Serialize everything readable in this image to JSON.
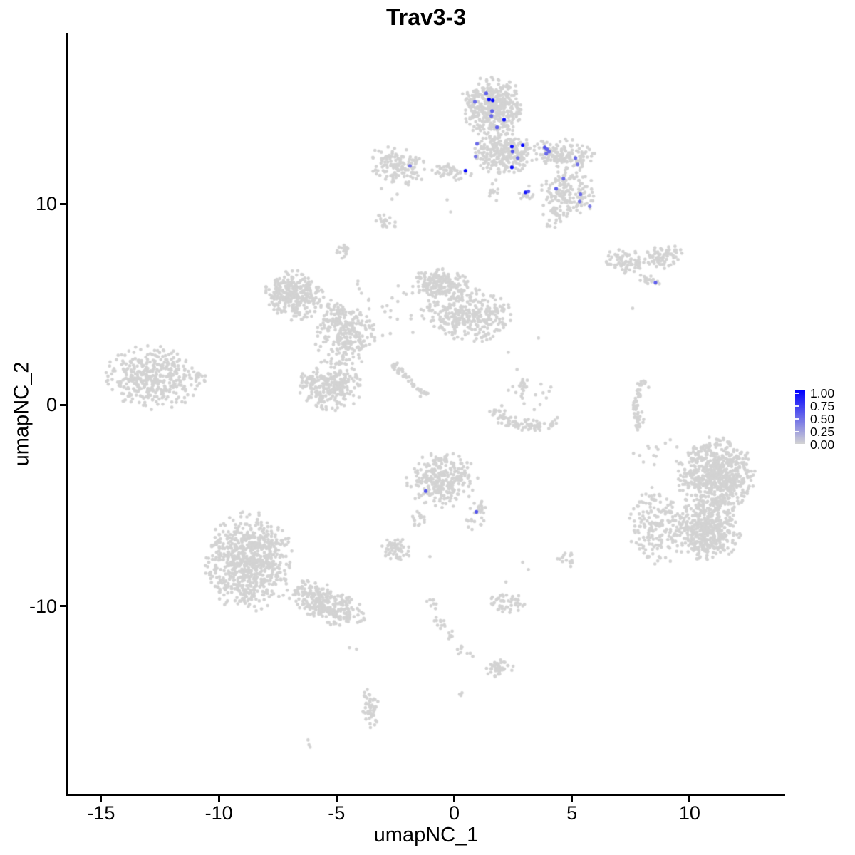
{
  "title": "Trav3-3",
  "axes": {
    "xlabel": "umapNC_1",
    "ylabel": "umapNC_2",
    "x_ticks": [
      {
        "v": -15,
        "label": "-15"
      },
      {
        "v": -10,
        "label": "-10"
      },
      {
        "v": -5,
        "label": "-5"
      },
      {
        "v": 0,
        "label": "0"
      },
      {
        "v": 5,
        "label": "5"
      },
      {
        "v": 10,
        "label": "10"
      }
    ],
    "y_ticks": [
      {
        "v": 10,
        "label": "10"
      },
      {
        "v": 0,
        "label": "0"
      },
      {
        "v": -10,
        "label": "-10"
      }
    ],
    "axis_color": "#000000"
  },
  "legend": {
    "labels": [
      "1.00",
      "0.75",
      "0.50",
      "0.25",
      "0.00"
    ],
    "values": [
      1.0,
      0.75,
      0.5,
      0.25,
      0.0
    ],
    "color_high": "#0000FF",
    "color_low": "#D3D3D3"
  },
  "chart_data": {
    "type": "scatter",
    "title": "Trav3-3",
    "xlabel": "umapNC_1",
    "ylabel": "umapNC_2",
    "xlim": [
      -16.42,
      14.03
    ],
    "ylim": [
      -19.33,
      18.51
    ],
    "grid": false,
    "legend_position": "right",
    "point_color_low": "#D3D3D3",
    "point_color_high": "#0000FF",
    "point_radius_px": 2.35,
    "expressing_point_radius_px": 2.6,
    "clusters": [
      {
        "type": "blob",
        "cx": 1.64,
        "cy": 14.8,
        "rx": 1.42,
        "ry": 1.56,
        "n": 430,
        "rot": 0
      },
      {
        "type": "blob",
        "cx": 2.15,
        "cy": 12.5,
        "rx": 1.36,
        "ry": 1.06,
        "n": 260,
        "rot": 0
      },
      {
        "type": "blob",
        "cx": 4.7,
        "cy": 12.46,
        "rx": 1.45,
        "ry": 0.8,
        "n": 150,
        "rot": -8
      },
      {
        "type": "blob",
        "cx": 4.85,
        "cy": 10.5,
        "rx": 1.2,
        "ry": 1.3,
        "n": 155,
        "rot": 0
      },
      {
        "type": "blob",
        "cx": 4.3,
        "cy": 9.35,
        "rx": 0.6,
        "ry": 0.55,
        "n": 25,
        "rot": 30
      },
      {
        "type": "blob",
        "cx": -0.15,
        "cy": 11.6,
        "rx": 1.0,
        "ry": 0.4,
        "n": 45,
        "rot": -10
      },
      {
        "type": "blob",
        "cx": 1.67,
        "cy": 10.7,
        "rx": 0.25,
        "ry": 0.65,
        "n": 12,
        "rot": 0
      },
      {
        "type": "blob",
        "cx": 3.03,
        "cy": 10.44,
        "rx": 0.38,
        "ry": 0.5,
        "n": 14,
        "rot": 0
      },
      {
        "type": "blob",
        "cx": -2.42,
        "cy": 11.9,
        "rx": 1.3,
        "ry": 1.0,
        "n": 135,
        "rot": -12
      },
      {
        "type": "blob",
        "cx": -2.94,
        "cy": 9.13,
        "rx": 0.45,
        "ry": 0.55,
        "n": 22,
        "rot": 40
      },
      {
        "type": "blob",
        "cx": 7.2,
        "cy": 7.15,
        "rx": 0.9,
        "ry": 0.64,
        "n": 75,
        "rot": -10
      },
      {
        "type": "blob",
        "cx": 8.9,
        "cy": 7.33,
        "rx": 0.95,
        "ry": 0.64,
        "n": 72,
        "rot": 8
      },
      {
        "type": "blob",
        "cx": 8.3,
        "cy": 6.27,
        "rx": 0.55,
        "ry": 0.3,
        "n": 18,
        "rot": -25
      },
      {
        "type": "blob",
        "cx": -4.7,
        "cy": 7.58,
        "rx": 0.3,
        "ry": 0.48,
        "n": 18,
        "rot": 0
      },
      {
        "type": "blob",
        "cx": -6.8,
        "cy": 5.45,
        "rx": 1.32,
        "ry": 1.24,
        "n": 300,
        "rot": -15
      },
      {
        "type": "blob",
        "cx": -5.06,
        "cy": 4.57,
        "rx": 0.6,
        "ry": 0.7,
        "n": 40,
        "rot": 0
      },
      {
        "type": "blob",
        "cx": -4.6,
        "cy": 3.43,
        "rx": 1.36,
        "ry": 1.5,
        "n": 235,
        "rot": 0
      },
      {
        "type": "blob",
        "cx": -5.27,
        "cy": 0.96,
        "rx": 1.4,
        "ry": 1.3,
        "n": 265,
        "rot": 0
      },
      {
        "type": "blob",
        "cx": -0.58,
        "cy": 6.05,
        "rx": 1.26,
        "ry": 0.75,
        "n": 175,
        "rot": -5
      },
      {
        "type": "blob",
        "cx": 0.55,
        "cy": 4.57,
        "rx": 2.0,
        "ry": 1.42,
        "n": 335,
        "rot": -12
      },
      {
        "type": "line",
        "x1": -2.7,
        "y1": 2.1,
        "x2": -1.2,
        "y2": 0.46,
        "n": 48,
        "jitter": 0.1
      },
      {
        "type": "box",
        "x1": -4.45,
        "y1": 3.4,
        "x2": -1.7,
        "y2": 6.2,
        "n": 26
      },
      {
        "type": "blob",
        "cx": 2.9,
        "cy": 0.85,
        "rx": 0.35,
        "ry": 0.72,
        "n": 14,
        "rot": 0
      },
      {
        "type": "arc",
        "p0": [
          1.55,
          -0.32
        ],
        "p1": [
          2.97,
          -1.45
        ],
        "p2": [
          4.4,
          -0.82
        ],
        "n": 95,
        "jitter": 0.14
      },
      {
        "type": "box",
        "x1": 2.0,
        "y1": -0.25,
        "x2": 4.3,
        "y2": 1.2,
        "n": 16
      },
      {
        "type": "arc",
        "p0": [
          8.12,
          1.27
        ],
        "p1": [
          7.4,
          0.3
        ],
        "p2": [
          7.97,
          -1.1
        ],
        "n": 55,
        "jitter": 0.1
      },
      {
        "type": "blob",
        "cx": -12.78,
        "cy": 1.31,
        "rx": 2.06,
        "ry": 1.63,
        "n": 395,
        "rot": -12
      },
      {
        "type": "blob",
        "cx": -10.88,
        "cy": 1.38,
        "rx": 0.5,
        "ry": 0.35,
        "n": 14,
        "rot": 0
      },
      {
        "type": "blob",
        "cx": 11.15,
        "cy": -3.5,
        "rx": 1.7,
        "ry": 1.95,
        "n": 640,
        "rot": 0
      },
      {
        "type": "blob",
        "cx": 10.7,
        "cy": -6.23,
        "rx": 1.55,
        "ry": 1.6,
        "n": 480,
        "rot": 0
      },
      {
        "type": "blob",
        "cx": 8.58,
        "cy": -6.05,
        "rx": 1.2,
        "ry": 2.0,
        "n": 175,
        "rot": 0,
        "spread": 0.55
      },
      {
        "type": "box",
        "x1": 7.6,
        "y1": -3.0,
        "x2": 10.0,
        "y2": -1.6,
        "n": 14
      },
      {
        "type": "blob",
        "cx": -0.52,
        "cy": -3.75,
        "rx": 1.55,
        "ry": 1.4,
        "n": 295,
        "rot": 0
      },
      {
        "type": "blob",
        "cx": 0.94,
        "cy": -5.52,
        "rx": 0.42,
        "ry": 1.05,
        "n": 30,
        "rot": -15
      },
      {
        "type": "blob",
        "cx": -1.48,
        "cy": -5.59,
        "rx": 0.4,
        "ry": 0.62,
        "n": 16,
        "rot": 20
      },
      {
        "type": "blob",
        "cx": -2.48,
        "cy": -7.19,
        "rx": 0.72,
        "ry": 0.62,
        "n": 55,
        "rot": 0
      },
      {
        "type": "blob",
        "cx": -8.7,
        "cy": -7.82,
        "rx": 1.9,
        "ry": 2.55,
        "n": 770,
        "rot": 0
      },
      {
        "type": "blob",
        "cx": -5.42,
        "cy": -9.88,
        "rx": 1.85,
        "ry": 0.9,
        "n": 295,
        "rot": -28
      },
      {
        "type": "blob",
        "cx": 4.82,
        "cy": -7.68,
        "rx": 0.36,
        "ry": 0.5,
        "n": 14,
        "rot": 0
      },
      {
        "type": "blob",
        "cx": 2.24,
        "cy": -9.8,
        "rx": 0.8,
        "ry": 0.52,
        "n": 45,
        "rot": -10
      },
      {
        "type": "blob",
        "cx": -1.0,
        "cy": -9.88,
        "rx": 0.28,
        "ry": 0.42,
        "n": 8,
        "rot": 0
      },
      {
        "type": "line",
        "x1": -0.9,
        "y1": -10.35,
        "x2": 0.4,
        "y2": -12.4,
        "n": 26,
        "jitter": 0.12
      },
      {
        "type": "blob",
        "cx": 1.9,
        "cy": -13.06,
        "rx": 0.62,
        "ry": 0.52,
        "n": 45,
        "rot": 0
      },
      {
        "type": "line",
        "x1": 0.2,
        "y1": -14.3,
        "x2": 0.62,
        "y2": -14.85,
        "n": 4,
        "jitter": 0.06
      },
      {
        "type": "blob",
        "cx": -3.58,
        "cy": -15.1,
        "rx": 0.42,
        "ry": 0.98,
        "n": 52,
        "rot": 8
      },
      {
        "type": "line",
        "x1": -6.35,
        "y1": -16.6,
        "x2": -6.05,
        "y2": -17.0,
        "n": 3,
        "jitter": 0.05
      },
      {
        "type": "points",
        "pts": [
          [
            -3.09,
            10.76
          ],
          [
            -2.64,
            10.23
          ],
          [
            -2.42,
            10.48
          ],
          [
            -4.09,
            6.16
          ],
          [
            -3.94,
            5.56
          ],
          [
            -3.64,
            5.2
          ],
          [
            -2.94,
            4.64
          ],
          [
            2.3,
            2.62
          ],
          [
            2.67,
            1.77
          ],
          [
            3.58,
            3.33
          ],
          [
            7.58,
            4.81
          ],
          [
            -1.03,
            -7.54
          ],
          [
            4.39,
            -7.65
          ],
          [
            2.91,
            -7.82
          ],
          [
            3.15,
            -8.18
          ],
          [
            2.2,
            -8.8
          ],
          [
            0.3,
            -12.1
          ],
          [
            0.55,
            -12.35
          ],
          [
            0.79,
            -12.5
          ],
          [
            -4.45,
            -12.07
          ],
          [
            -4.15,
            -12.14
          ],
          [
            8.58,
            -2.09
          ],
          [
            9.18,
            -1.73
          ],
          [
            7.88,
            -2.51
          ],
          [
            -0.3,
            10.2
          ],
          [
            -0.15,
            9.6
          ]
        ]
      }
    ],
    "expressing_cells": [
      {
        "x": 1.36,
        "y": 15.5,
        "value": 0.55
      },
      {
        "x": 0.88,
        "y": 15.08,
        "value": 0.5
      },
      {
        "x": 1.48,
        "y": 15.19,
        "value": 1.0
      },
      {
        "x": 1.64,
        "y": 15.15,
        "value": 1.0
      },
      {
        "x": 1.61,
        "y": 14.62,
        "value": 0.55
      },
      {
        "x": 1.58,
        "y": 14.37,
        "value": 0.5
      },
      {
        "x": 2.12,
        "y": 14.19,
        "value": 0.95
      },
      {
        "x": 1.82,
        "y": 13.81,
        "value": 0.55
      },
      {
        "x": 2.45,
        "y": 12.85,
        "value": 0.95
      },
      {
        "x": 2.91,
        "y": 12.92,
        "value": 1.0
      },
      {
        "x": 2.48,
        "y": 12.6,
        "value": 0.6
      },
      {
        "x": 2.7,
        "y": 12.28,
        "value": 0.5
      },
      {
        "x": 0.97,
        "y": 12.99,
        "value": 0.5
      },
      {
        "x": 0.91,
        "y": 12.35,
        "value": 0.45
      },
      {
        "x": 0.48,
        "y": 11.65,
        "value": 1.0
      },
      {
        "x": -1.88,
        "y": 11.89,
        "value": 0.45
      },
      {
        "x": 3.85,
        "y": 12.81,
        "value": 0.6
      },
      {
        "x": 3.94,
        "y": 12.71,
        "value": 0.55
      },
      {
        "x": 4.03,
        "y": 12.6,
        "value": 0.5
      },
      {
        "x": 3.91,
        "y": 12.5,
        "value": 0.5
      },
      {
        "x": 5.15,
        "y": 12.28,
        "value": 0.5
      },
      {
        "x": 5.24,
        "y": 11.96,
        "value": 0.45
      },
      {
        "x": 2.45,
        "y": 11.82,
        "value": 0.95
      },
      {
        "x": 3.03,
        "y": 10.58,
        "value": 0.9
      },
      {
        "x": 3.15,
        "y": 10.62,
        "value": 0.6
      },
      {
        "x": 4.64,
        "y": 11.26,
        "value": 0.5
      },
      {
        "x": 4.33,
        "y": 10.76,
        "value": 0.55
      },
      {
        "x": 5.36,
        "y": 10.48,
        "value": 0.5
      },
      {
        "x": 5.33,
        "y": 10.12,
        "value": 0.45
      },
      {
        "x": 5.76,
        "y": 9.88,
        "value": 0.4
      },
      {
        "x": 8.55,
        "y": 6.09,
        "value": 0.55
      },
      {
        "x": -1.21,
        "y": -4.28,
        "value": 0.6
      },
      {
        "x": 0.94,
        "y": -5.31,
        "value": 0.6
      }
    ]
  }
}
